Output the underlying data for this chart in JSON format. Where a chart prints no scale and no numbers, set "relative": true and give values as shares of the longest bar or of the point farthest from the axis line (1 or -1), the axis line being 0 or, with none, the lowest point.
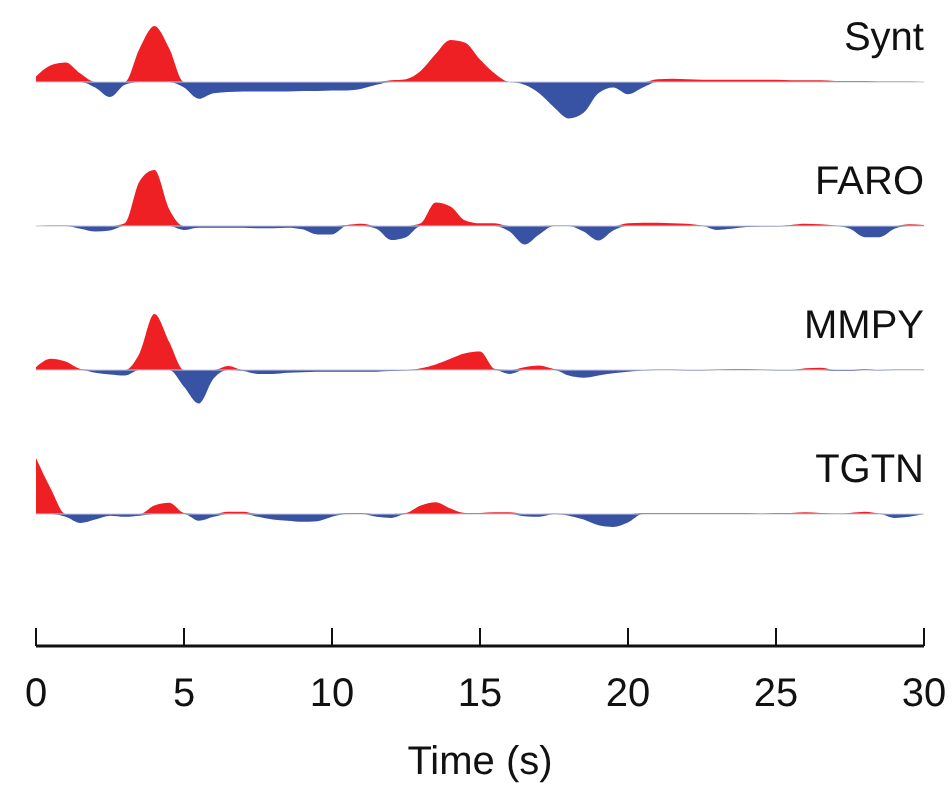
{
  "chart_data": [
    {
      "type": "area",
      "title": "Synt",
      "relative": true,
      "tick_labels": false,
      "xlim": [
        0,
        30
      ],
      "x": [
        0,
        0.5,
        1,
        1.5,
        2,
        2.5,
        3,
        3.5,
        4,
        4.5,
        5,
        5.5,
        6,
        6.5,
        7,
        7.5,
        8,
        8.5,
        9,
        9.5,
        10,
        10.5,
        11,
        11.5,
        12,
        12.5,
        13,
        13.5,
        14,
        14.5,
        15,
        15.5,
        16,
        16.5,
        17,
        17.5,
        18,
        18.5,
        19,
        19.5,
        20,
        20.5,
        21,
        21.5,
        22,
        22.5,
        23,
        23.5,
        24,
        24.5,
        25,
        25.5,
        26,
        26.5,
        27,
        27.5,
        28,
        28.5,
        29,
        29.5,
        30
      ],
      "series": [
        {
          "color": "#ee2024",
          "values": [
            0.1,
            0.3,
            0.35,
            0.15,
            0,
            0,
            0,
            0.6,
            1,
            0.6,
            0,
            0,
            0,
            0,
            0,
            0,
            0,
            0,
            0,
            0,
            0,
            0,
            0,
            0,
            0.03,
            0.05,
            0.2,
            0.5,
            0.75,
            0.7,
            0.4,
            0.15,
            0,
            0,
            0,
            0,
            0,
            0,
            0,
            0,
            0,
            0,
            0.05,
            0.06,
            0.05,
            0.04,
            0.04,
            0.04,
            0.04,
            0.04,
            0.04,
            0.03,
            0.03,
            0.03,
            0.02,
            0.02,
            0.02,
            0.01,
            0.01,
            0.01,
            0
          ]
        },
        {
          "color": "#3953a4",
          "values": [
            0,
            0,
            0,
            0,
            -0.1,
            -0.27,
            -0.05,
            0,
            0,
            0,
            -0.1,
            -0.3,
            -0.2,
            -0.18,
            -0.17,
            -0.17,
            -0.17,
            -0.17,
            -0.16,
            -0.16,
            -0.15,
            -0.15,
            -0.12,
            -0.05,
            0,
            0,
            0,
            0,
            0,
            0,
            0,
            0,
            0,
            -0.05,
            -0.2,
            -0.45,
            -0.65,
            -0.55,
            -0.2,
            -0.1,
            -0.22,
            -0.1,
            0,
            0,
            0,
            0,
            0,
            0,
            0,
            0,
            0,
            0,
            0,
            0,
            0,
            0,
            0,
            0,
            0,
            0,
            0
          ]
        }
      ]
    },
    {
      "type": "area",
      "title": "FARO",
      "relative": true,
      "tick_labels": false,
      "xlim": [
        0,
        30
      ],
      "x": [
        0,
        0.5,
        1,
        1.5,
        2,
        2.5,
        3,
        3.5,
        4,
        4.5,
        5,
        5.5,
        6,
        6.5,
        7,
        7.5,
        8,
        8.5,
        9,
        9.5,
        10,
        10.5,
        11,
        11.5,
        12,
        12.5,
        13,
        13.5,
        14,
        14.5,
        15,
        15.5,
        16,
        16.5,
        17,
        17.5,
        18,
        18.5,
        19,
        19.5,
        20,
        20.5,
        21,
        21.5,
        22,
        22.5,
        23,
        23.5,
        24,
        24.5,
        25,
        25.5,
        26,
        26.5,
        27,
        27.5,
        28,
        28.5,
        29,
        29.5,
        30
      ],
      "series": [
        {
          "color": "#ee2024",
          "values": [
            0,
            0.01,
            0.01,
            0,
            0,
            0,
            0.05,
            0.8,
            1,
            0.3,
            0,
            0,
            0,
            0,
            0,
            0,
            0,
            0,
            0,
            0,
            0,
            0.02,
            0.04,
            0,
            0,
            0,
            0.05,
            0.42,
            0.35,
            0.1,
            0.05,
            0.05,
            0,
            0,
            0,
            0.01,
            0.01,
            0,
            0,
            0,
            0.05,
            0.06,
            0.06,
            0.05,
            0.04,
            0.01,
            0,
            0,
            0,
            0,
            0,
            0.02,
            0.04,
            0.03,
            0.01,
            0,
            0,
            0,
            0,
            0.03,
            0.02
          ]
        },
        {
          "color": "#3953a4",
          "values": [
            0,
            0,
            0,
            -0.05,
            -0.1,
            -0.08,
            0,
            0,
            0,
            0,
            -0.07,
            -0.03,
            -0.03,
            -0.03,
            -0.03,
            -0.04,
            -0.04,
            -0.03,
            -0.06,
            -0.15,
            -0.15,
            0,
            0,
            -0.05,
            -0.25,
            -0.2,
            0,
            0,
            0,
            0,
            0,
            0,
            -0.1,
            -0.33,
            -0.15,
            0,
            0,
            -0.1,
            -0.26,
            -0.08,
            0,
            0,
            0,
            0,
            0,
            0,
            -0.07,
            -0.05,
            -0.02,
            -0.01,
            -0.01,
            0,
            0,
            0,
            0,
            -0.05,
            -0.2,
            -0.2,
            -0.05,
            0,
            0
          ]
        }
      ]
    },
    {
      "type": "area",
      "title": "MMPY",
      "relative": true,
      "tick_labels": false,
      "xlim": [
        0,
        30
      ],
      "x": [
        0,
        0.5,
        1,
        1.5,
        2,
        2.5,
        3,
        3.5,
        4,
        4.5,
        5,
        5.5,
        6,
        6.5,
        7,
        7.5,
        8,
        8.5,
        9,
        9.5,
        10,
        10.5,
        11,
        11.5,
        12,
        12.5,
        13,
        13.5,
        14,
        14.5,
        15,
        15.5,
        16,
        16.5,
        17,
        17.5,
        18,
        18.5,
        19,
        19.5,
        20,
        20.5,
        21,
        21.5,
        22,
        22.5,
        23,
        23.5,
        24,
        24.5,
        25,
        25.5,
        26,
        26.5,
        27,
        27.5,
        28,
        28.5,
        29,
        29.5,
        30
      ],
      "series": [
        {
          "color": "#ee2024",
          "values": [
            0.05,
            0.2,
            0.15,
            0.02,
            0,
            0,
            0,
            0.3,
            1,
            0.5,
            0,
            0,
            0,
            0.07,
            0,
            0,
            0,
            0,
            0,
            0,
            0,
            0,
            0,
            0,
            0,
            0,
            0.03,
            0.1,
            0.2,
            0.3,
            0.33,
            0.02,
            0,
            0.05,
            0.08,
            0.02,
            0,
            0,
            0,
            0,
            0,
            0,
            0.01,
            0.01,
            0,
            0,
            0.01,
            0.02,
            0.02,
            0.01,
            0,
            0,
            0.03,
            0.04,
            0,
            0,
            0.02,
            0,
            0.01,
            0.01,
            0.01
          ]
        },
        {
          "color": "#3953a4",
          "values": [
            0,
            0,
            0,
            0,
            -0.05,
            -0.08,
            -0.1,
            0,
            0,
            0,
            -0.3,
            -0.6,
            -0.15,
            0,
            -0.02,
            -0.07,
            -0.07,
            -0.05,
            -0.04,
            -0.03,
            -0.03,
            -0.03,
            -0.03,
            -0.03,
            -0.02,
            -0.01,
            0,
            0,
            0,
            0,
            0,
            0,
            -0.07,
            0,
            0,
            0,
            -0.1,
            -0.14,
            -0.1,
            -0.06,
            -0.03,
            -0.01,
            0,
            0,
            -0.01,
            -0.01,
            0,
            0,
            0,
            0,
            -0.01,
            -0.01,
            0,
            0,
            -0.02,
            -0.02,
            0,
            -0.01,
            0,
            0,
            0
          ]
        }
      ]
    },
    {
      "type": "area",
      "title": "TGTN",
      "relative": true,
      "xlabel": "Time (s)",
      "xlim": [
        0,
        30
      ],
      "xticks": [
        0,
        5,
        10,
        15,
        20,
        25,
        30
      ],
      "x": [
        0,
        0.5,
        1,
        1.5,
        2,
        2.5,
        3,
        3.5,
        4,
        4.5,
        5,
        5.5,
        6,
        6.5,
        7,
        7.5,
        8,
        8.5,
        9,
        9.5,
        10,
        10.5,
        11,
        11.5,
        12,
        12.5,
        13,
        13.5,
        14,
        14.5,
        15,
        15.5,
        16,
        16.5,
        17,
        17.5,
        18,
        18.5,
        19,
        19.5,
        20,
        20.5,
        21,
        21.5,
        22,
        22.5,
        23,
        23.5,
        24,
        24.5,
        25,
        25.5,
        26,
        26.5,
        27,
        27.5,
        28,
        28.5,
        29,
        29.5,
        30
      ],
      "series": [
        {
          "color": "#ee2024",
          "values": [
            1,
            0.45,
            0,
            0,
            0,
            0,
            0,
            0,
            0.15,
            0.2,
            0.02,
            0,
            0,
            0.04,
            0.04,
            0,
            0,
            0,
            0,
            0,
            0,
            0.02,
            0.02,
            0,
            0,
            0.02,
            0.15,
            0.21,
            0.1,
            0.02,
            0.02,
            0.03,
            0.03,
            0,
            0,
            0.01,
            0,
            0,
            0,
            0,
            0,
            0.02,
            0.02,
            0.02,
            0.02,
            0.02,
            0.02,
            0.02,
            0.02,
            0.01,
            0.02,
            0.02,
            0.03,
            0.02,
            0.01,
            0.02,
            0.04,
            0.01,
            0,
            0,
            0
          ]
        },
        {
          "color": "#3953a4",
          "values": [
            0,
            0,
            -0.05,
            -0.16,
            -0.1,
            -0.03,
            -0.05,
            -0.03,
            0,
            0,
            0,
            -0.12,
            -0.05,
            0,
            0,
            -0.05,
            -0.1,
            -0.12,
            -0.14,
            -0.13,
            -0.05,
            0,
            0,
            -0.05,
            -0.07,
            0,
            0,
            0,
            0,
            0,
            0,
            0,
            0,
            -0.04,
            -0.05,
            0,
            -0.03,
            -0.1,
            -0.2,
            -0.23,
            -0.15,
            0,
            0,
            0,
            0,
            0,
            0,
            0,
            0,
            0,
            0,
            0,
            0,
            0,
            0,
            0,
            0,
            0,
            -0.07,
            -0.05,
            0
          ]
        }
      ]
    }
  ]
}
